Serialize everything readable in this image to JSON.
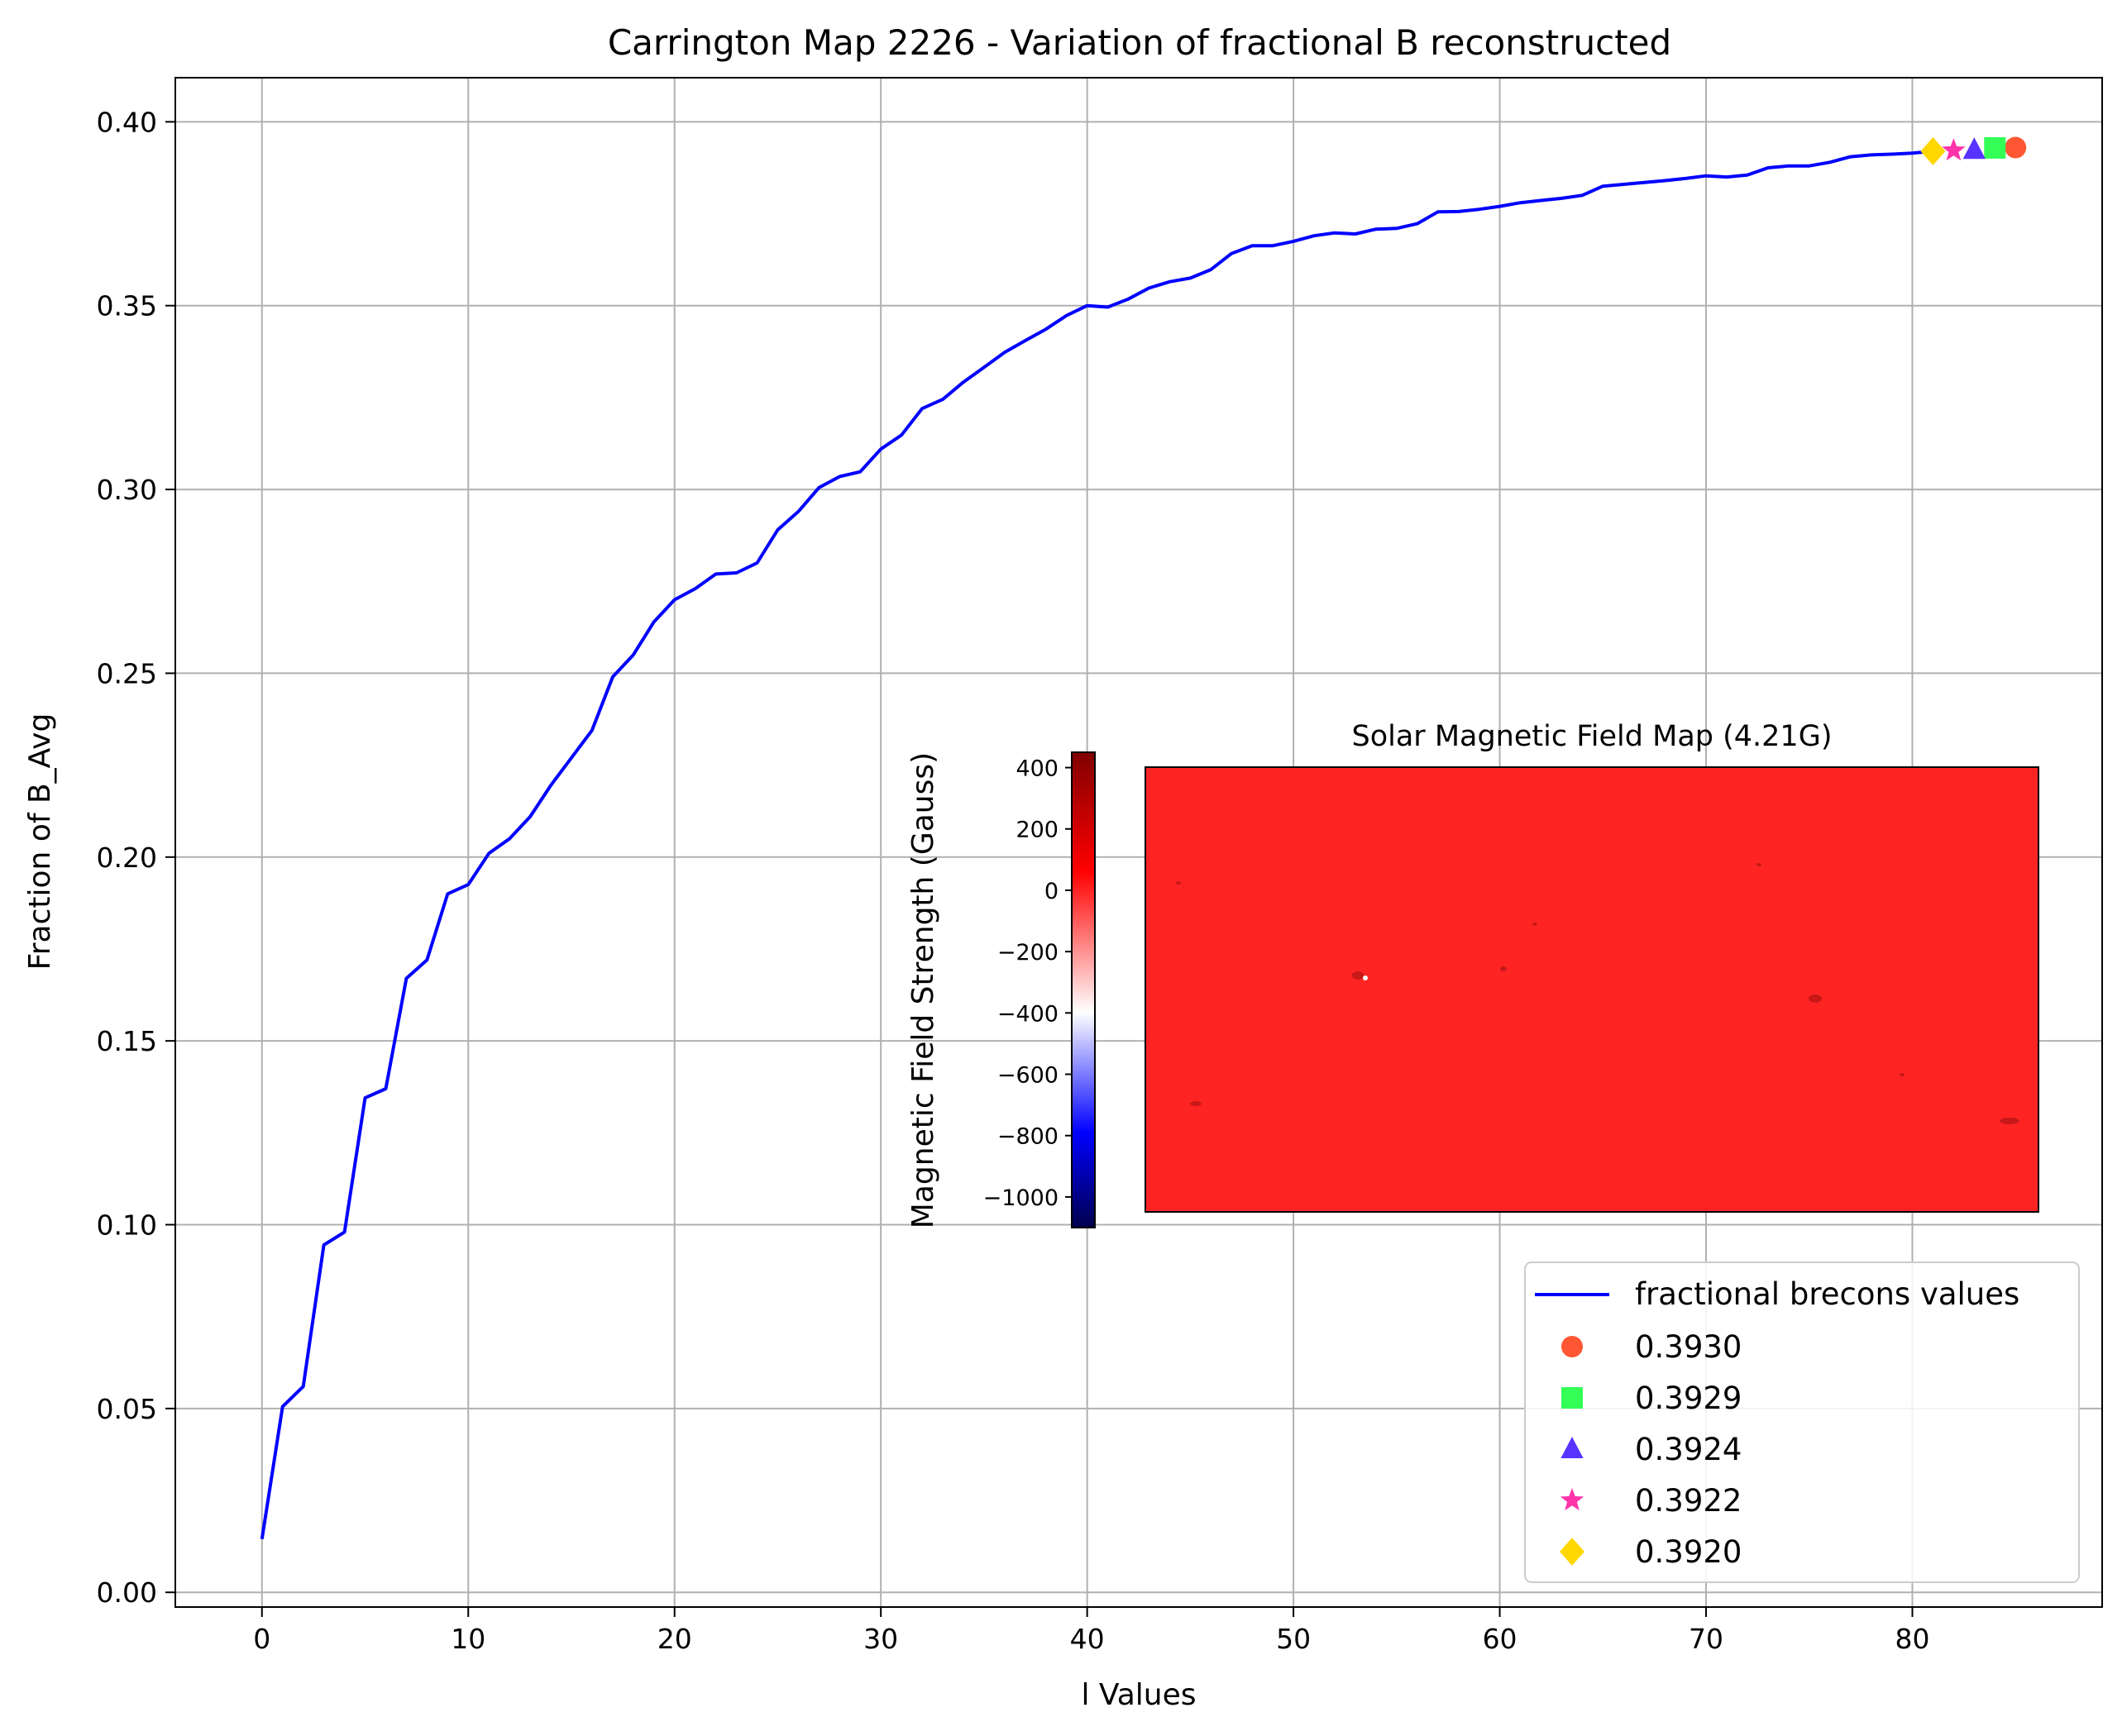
{
  "chart_data": {
    "type": "line",
    "title": "Carrington Map 2226 - Variation of fractional B reconstructed",
    "xlabel": "l Values",
    "ylabel": "Fraction of B_Avg",
    "xlim": [
      -4.2,
      89.2
    ],
    "ylim": [
      -0.004,
      0.412
    ],
    "xticks": [
      "0",
      "10",
      "20",
      "30",
      "40",
      "50",
      "60",
      "70",
      "80"
    ],
    "xtick_values": [
      0,
      10,
      20,
      30,
      40,
      50,
      60,
      70,
      80
    ],
    "yticks": [
      "0.00",
      "0.05",
      "0.10",
      "0.15",
      "0.20",
      "0.25",
      "0.30",
      "0.35",
      "0.40"
    ],
    "ytick_values": [
      0,
      0.05,
      0.1,
      0.15,
      0.2,
      0.25,
      0.3,
      0.35,
      0.4
    ],
    "grid": true,
    "legend_position": "lower-right",
    "series": [
      {
        "name": "fractional brecons values",
        "color": "#0000ff",
        "x": [
          0,
          1,
          2,
          3,
          4,
          5,
          6,
          7,
          8,
          9,
          10,
          11,
          12,
          13,
          14,
          15,
          16,
          17,
          18,
          19,
          20,
          21,
          22,
          23,
          24,
          25,
          26,
          27,
          28,
          29,
          30,
          31,
          32,
          33,
          34,
          35,
          36,
          37,
          38,
          39,
          40,
          41,
          42,
          43,
          44,
          45,
          46,
          47,
          48,
          49,
          50,
          51,
          52,
          53,
          54,
          55,
          56,
          57,
          58,
          59,
          60,
          61,
          62,
          63,
          64,
          65,
          66,
          67,
          68,
          69,
          70,
          71,
          72,
          73,
          74,
          75,
          76,
          77,
          78,
          79,
          80,
          81
        ],
        "y": [
          0.0145,
          0.0505,
          0.056,
          0.0945,
          0.098,
          0.1345,
          0.137,
          0.167,
          0.172,
          0.19,
          0.1925,
          0.201,
          0.205,
          0.211,
          0.2195,
          0.227,
          0.2345,
          0.249,
          0.255,
          0.264,
          0.27,
          0.273,
          0.277,
          0.2773,
          0.28,
          0.289,
          0.294,
          0.3005,
          0.3035,
          0.3048,
          0.311,
          0.3148,
          0.322,
          0.3245,
          0.3292,
          0.3332,
          0.3373,
          0.3405,
          0.3436,
          0.3473,
          0.35,
          0.3496,
          0.3518,
          0.3548,
          0.3565,
          0.3575,
          0.3598,
          0.3642,
          0.3663,
          0.3663,
          0.3675,
          0.369,
          0.3698,
          0.3695,
          0.3708,
          0.371,
          0.3723,
          0.3755,
          0.3756,
          0.3762,
          0.377,
          0.378,
          0.3786,
          0.3792,
          0.38,
          0.3825,
          0.383,
          0.3835,
          0.384,
          0.3846,
          0.3853,
          0.385,
          0.3855,
          0.3875,
          0.388,
          0.388,
          0.389,
          0.3905,
          0.391,
          0.3912,
          0.3915,
          0.392
        ]
      }
    ],
    "markers": [
      {
        "label": "0.3930",
        "x": 85,
        "y": 0.393,
        "shape": "circle",
        "color": "#ff5733"
      },
      {
        "label": "0.3929",
        "x": 84,
        "y": 0.3929,
        "shape": "square",
        "color": "#33ff57"
      },
      {
        "label": "0.3924",
        "x": 83,
        "y": 0.3924,
        "shape": "triangle",
        "color": "#5733ff"
      },
      {
        "label": "0.3922",
        "x": 82,
        "y": 0.3922,
        "shape": "star",
        "color": "#ff33a8"
      },
      {
        "label": "0.3920",
        "x": 81,
        "y": 0.392,
        "shape": "diamond",
        "color": "#ffd700"
      }
    ]
  },
  "inset": {
    "title": "Solar Magnetic Field Map (4.21G)",
    "colorbar": {
      "label": "Magnetic Field Strength (Gauss)",
      "range": [
        -1100,
        450
      ],
      "tick_values": [
        400,
        200,
        0,
        -200,
        -400,
        -600,
        -800,
        -1000
      ],
      "tick_labels": [
        "400",
        "200",
        "0",
        "−200",
        "−400",
        "−600",
        "−800",
        "−1000"
      ],
      "colormap": "seismic",
      "colors": [
        "#00004d",
        "#0000ff",
        "#ffffff",
        "#ff0000",
        "#800000"
      ]
    },
    "map_color": "#fe2424"
  }
}
